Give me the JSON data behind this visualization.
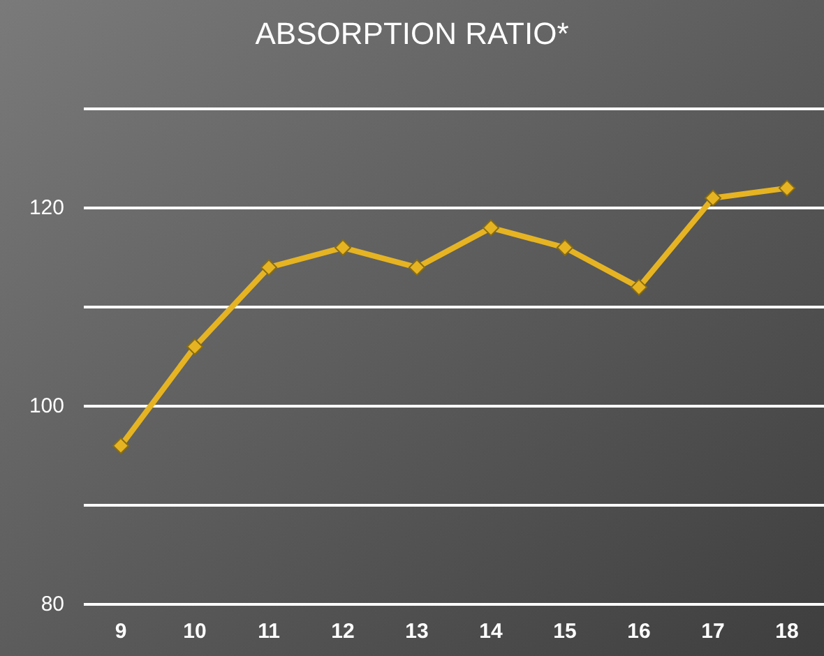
{
  "chart_data": {
    "type": "line",
    "title": "ABSORPTION RATIO*",
    "categories": [
      "9",
      "10",
      "11",
      "12",
      "13",
      "14",
      "15",
      "16",
      "17",
      "18"
    ],
    "series": [
      {
        "color": "#e6b422",
        "values": [
          96,
          106,
          114,
          116,
          114,
          118,
          116,
          112,
          121,
          122
        ]
      }
    ],
    "ylim": [
      80,
      130
    ],
    "yticks": [
      80,
      {
        "value": 90,
        "label": null
      },
      100,
      {
        "value": 110,
        "label": null
      },
      120,
      {
        "value": 130,
        "label": null
      }
    ],
    "grid": "y",
    "marker": "diamond",
    "line_style": "solid"
  }
}
